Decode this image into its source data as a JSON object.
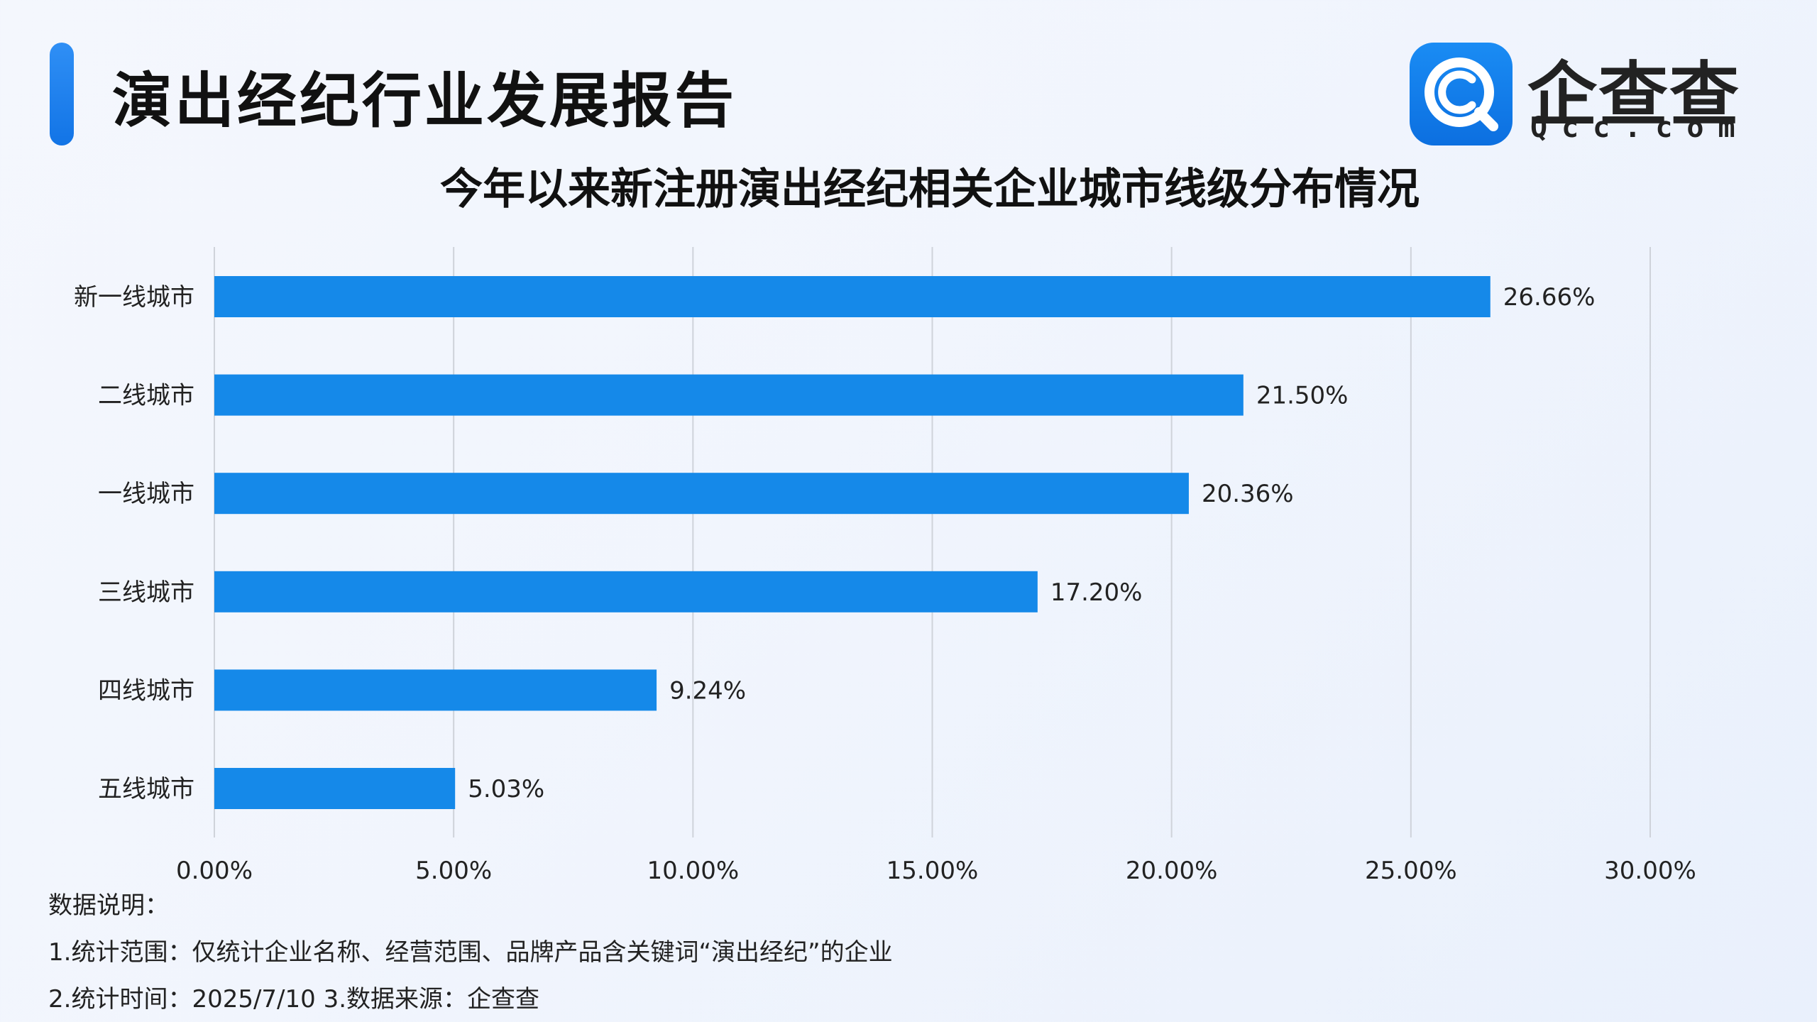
{
  "header": {
    "report_title": "演出经纪行业发展报告",
    "logo_name": "企查查",
    "logo_domain": "Qcc.com",
    "logo_icon": "qcc-logo-icon"
  },
  "chart_data": {
    "type": "bar",
    "orientation": "horizontal",
    "title": "今年以来新注册演出经纪相关企业城市线级分布情况",
    "categories": [
      "新一线城市",
      "二线城市",
      "一线城市",
      "三线城市",
      "四线城市",
      "五线城市"
    ],
    "values": [
      26.66,
      21.5,
      20.36,
      17.2,
      9.24,
      5.03
    ],
    "value_labels": [
      "26.66%",
      "21.50%",
      "20.36%",
      "17.20%",
      "9.24%",
      "5.03%"
    ],
    "x_ticks": [
      "0.00%",
      "5.00%",
      "10.00%",
      "15.00%",
      "20.00%",
      "25.00%",
      "30.00%"
    ],
    "xlim": [
      0,
      30
    ],
    "unit": "%",
    "grid": true,
    "bar_color": "#1589e9"
  },
  "notes": {
    "heading": "数据说明：",
    "line1": "1.统计范围：仅统计企业名称、经营范围、品牌产品含关键词“演出经纪”的企业",
    "line2": " 2.统计时间：2025/7/10  3.数据来源：企查查"
  }
}
